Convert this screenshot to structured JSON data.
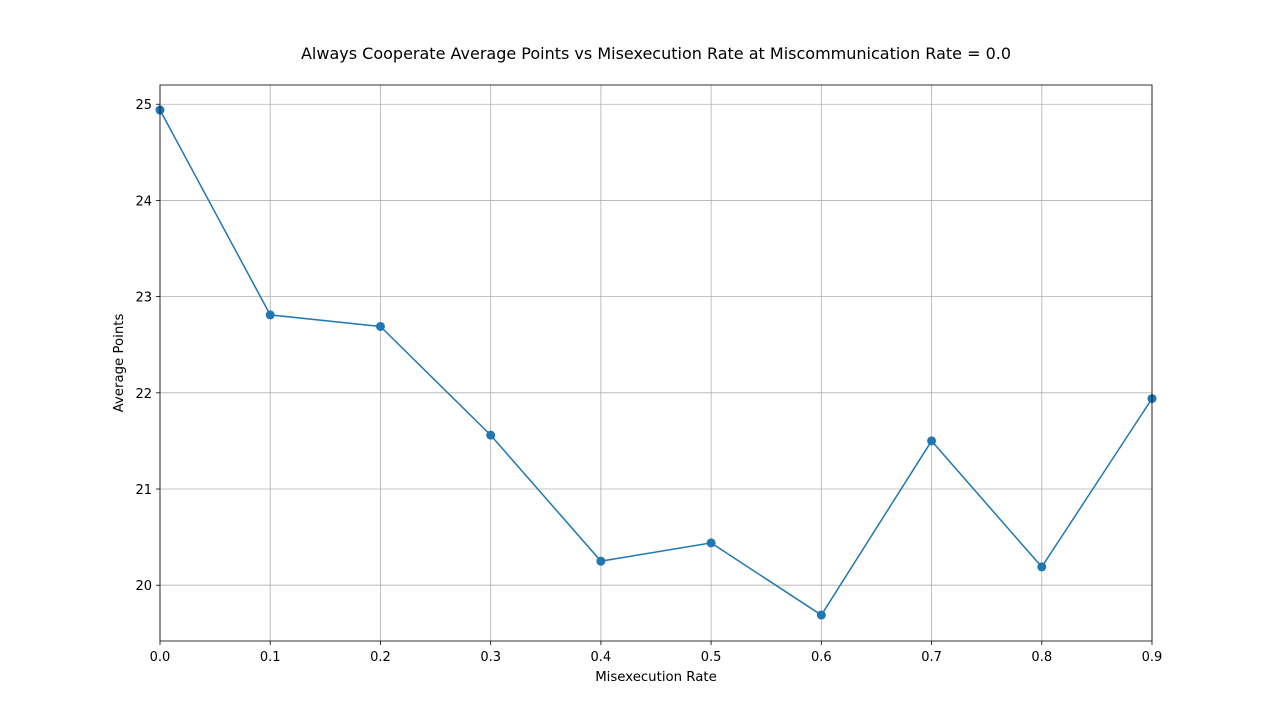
{
  "chart_data": {
    "type": "line",
    "title": "Always Cooperate Average Points vs Misexecution Rate at Miscommunication Rate = 0.0",
    "xlabel": "Misexecution Rate",
    "ylabel": "Average Points",
    "xlim": [
      0.0,
      0.9
    ],
    "ylim": [
      19.42,
      25.2
    ],
    "x_ticks": [
      "0.0",
      "0.1",
      "0.2",
      "0.3",
      "0.4",
      "0.5",
      "0.6",
      "0.7",
      "0.8",
      "0.9"
    ],
    "y_ticks": [
      "20",
      "21",
      "22",
      "23",
      "24",
      "25"
    ],
    "grid": true,
    "series": [
      {
        "x": [
          0.0,
          0.1,
          0.2,
          0.3,
          0.4,
          0.5,
          0.6,
          0.7,
          0.8,
          0.9
        ],
        "y": [
          24.94,
          22.81,
          22.69,
          21.56,
          20.25,
          20.44,
          19.69,
          21.5,
          20.19,
          21.94
        ],
        "color": "#1f77b4",
        "marker": "circle"
      }
    ]
  }
}
